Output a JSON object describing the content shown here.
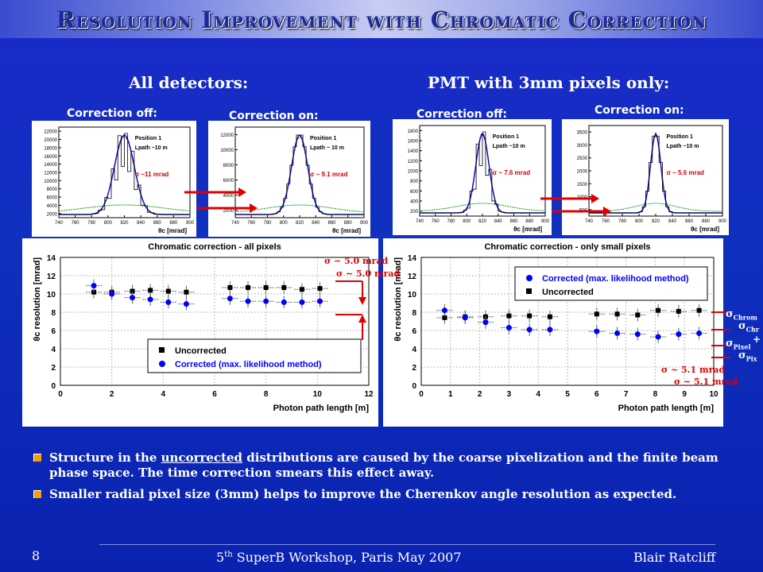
{
  "title": "Resolution Improvement with Chromatic Correction",
  "headings": {
    "all_detectors": "All detectors:",
    "pmt_only": "PMT with 3mm pixels only:"
  },
  "histograms": [
    {
      "label": "Correction off:",
      "pos": "Position 1",
      "lpath": "Lpath ~10 m",
      "sigma": "σ ~11 mrad",
      "yticks": [
        "22000",
        "20000",
        "18000",
        "16000",
        "14000",
        "12000",
        "10000",
        "8000",
        "6000",
        "4000",
        "2000"
      ],
      "xticks": [
        "740",
        "760",
        "780",
        "800",
        "820",
        "840",
        "860",
        "880",
        "900"
      ],
      "xlabel": "θc [mrad]"
    },
    {
      "label": "Correction on:",
      "pos": "Position 1",
      "lpath": "Lpath ~ 10 m",
      "sigma": "σ ~ 9.1 mrad",
      "yticks": [
        "12000",
        "10000",
        "8000",
        "6000",
        "4000",
        "2000"
      ],
      "xticks": [
        "740",
        "760",
        "780",
        "800",
        "820",
        "840",
        "860",
        "880",
        "900"
      ],
      "xlabel": "θc [mrad]"
    },
    {
      "label": "Correction off:",
      "pos": "Position 1",
      "lpath": "Lpath ~10 m",
      "sigma": "σ ~ 7.6 mrad",
      "yticks": [
        "1800",
        "1600",
        "1400",
        "1200",
        "1000",
        "800",
        "600",
        "400",
        "200"
      ],
      "xticks": [
        "740",
        "760",
        "780",
        "800",
        "820",
        "840",
        "860",
        "880",
        "900"
      ],
      "xlabel": "θc [mrad]"
    },
    {
      "label": "Correction on:",
      "pos": "Position 1",
      "lpath": "Lpath ~10 m",
      "sigma": "σ ~ 5.6 mrad",
      "yticks": [
        "3500",
        "3000",
        "2500",
        "2000",
        "1500",
        "1000",
        "500"
      ],
      "xticks": [
        "740",
        "760",
        "780",
        "800",
        "820",
        "840",
        "860",
        "880",
        "900"
      ],
      "xlabel": "θc [mrad]"
    }
  ],
  "chart_data": [
    {
      "type": "scatter",
      "title": "Chromatic correction - all pixels",
      "xlabel": "Photon path length [m]",
      "ylabel": "θc resolution [mrad]",
      "xlim": [
        0,
        12
      ],
      "ylim": [
        0,
        14
      ],
      "xticks": [
        "0",
        "2",
        "4",
        "6",
        "8",
        "10",
        "12"
      ],
      "yticks": [
        "0",
        "2",
        "4",
        "6",
        "8",
        "10",
        "12",
        "14"
      ],
      "series": [
        {
          "name": "Uncorrected",
          "color": "#000000",
          "marker": "square",
          "x": [
            1.3,
            2.0,
            2.8,
            3.5,
            4.2,
            4.9,
            6.6,
            7.3,
            8.0,
            8.7,
            9.4,
            10.1
          ],
          "y": [
            10.2,
            10.2,
            10.3,
            10.4,
            10.3,
            10.2,
            10.7,
            10.7,
            10.7,
            10.7,
            10.5,
            10.6
          ]
        },
        {
          "name": "Corrected (max. likelihood method)",
          "color": "#0000ff",
          "marker": "circle",
          "x": [
            1.3,
            2.0,
            2.8,
            3.5,
            4.2,
            4.9,
            6.6,
            7.3,
            8.0,
            8.7,
            9.4,
            10.1
          ],
          "y": [
            10.9,
            10.0,
            9.6,
            9.4,
            9.1,
            8.9,
            9.5,
            9.2,
            9.2,
            9.1,
            9.1,
            9.2
          ]
        }
      ],
      "legend": "bottom-right",
      "annotations": [
        "σ ~ 5.0 mrad",
        "σ ~ 5.0 mrad"
      ]
    },
    {
      "type": "scatter",
      "title": "Chromatic correction - only small pixels",
      "xlabel": "Photon path length [m]",
      "ylabel": "θc resolution [mrad]",
      "xlim": [
        0,
        10
      ],
      "ylim": [
        0,
        14
      ],
      "xticks": [
        "0",
        "1",
        "2",
        "3",
        "4",
        "5",
        "6",
        "7",
        "8",
        "9",
        "10"
      ],
      "yticks": [
        "0",
        "2",
        "4",
        "6",
        "8",
        "10",
        "12",
        "14"
      ],
      "series": [
        {
          "name": "Uncorrected",
          "color": "#000000",
          "marker": "square",
          "x": [
            0.8,
            1.5,
            2.2,
            3.0,
            3.7,
            4.4,
            6.0,
            6.7,
            7.4,
            8.1,
            8.8,
            9.5
          ],
          "y": [
            7.4,
            7.5,
            7.5,
            7.6,
            7.6,
            7.5,
            7.8,
            7.8,
            7.7,
            8.2,
            8.1,
            8.2
          ]
        },
        {
          "name": "Corrected (max. likelihood method)",
          "color": "#0000ff",
          "marker": "circle",
          "x": [
            0.8,
            1.5,
            2.2,
            3.0,
            3.7,
            4.4,
            6.0,
            6.7,
            7.4,
            8.1,
            8.8,
            9.5
          ],
          "y": [
            8.2,
            7.4,
            6.9,
            6.3,
            6.1,
            6.1,
            5.9,
            5.7,
            5.6,
            5.3,
            5.6,
            5.7
          ]
        }
      ],
      "legend": "top-right",
      "annotations": [
        "σ ~ 5.1 mrad",
        "σ ~ 5.1 mrad"
      ]
    }
  ],
  "side_labels": {
    "sigma_chrom": "σ",
    "chrom_sub": "Chrom",
    "chr_sub": "Chr",
    "sigma_pixel": "σ",
    "pixel_sub": "Pixel",
    "pix_sub": "Pix",
    "plus": "+"
  },
  "bullets": [
    {
      "pre": "Structure in the ",
      "u": "uncorrected",
      "post": " distributions are caused by the coarse pixelization and the finite beam phase space. The time correction smears this effect away."
    },
    {
      "pre": "Smaller radial pixel size (3mm) helps to improve the Cherenkov angle resolution as expected.",
      "u": "",
      "post": ""
    }
  ],
  "footer": {
    "page": "8",
    "event_num": "5",
    "event_sup": "th",
    "event_rest": " SuperB Workshop, Paris  May 2007",
    "author": "Blair Ratcliff"
  },
  "colors": {
    "accent": "#e00000",
    "bullet": "#f4a000",
    "background": "#1030c0"
  }
}
